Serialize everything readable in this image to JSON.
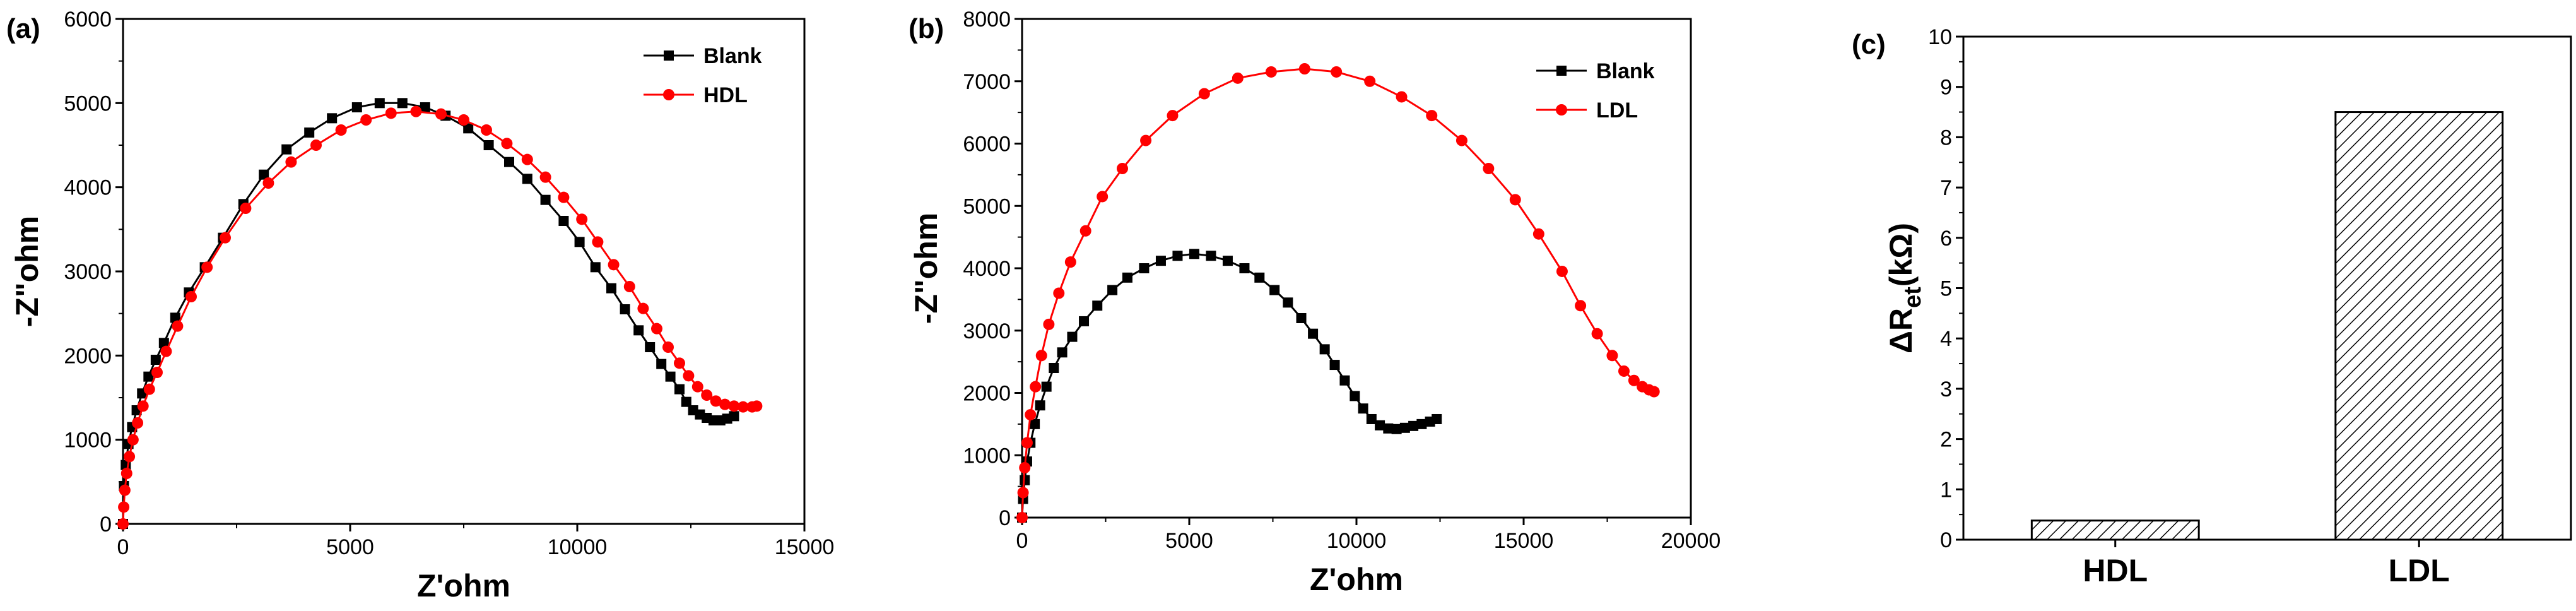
{
  "chart_data": [
    {
      "panel": "(a)",
      "type": "scatter",
      "title": "",
      "xlabel": "Z'ohm",
      "ylabel": "-Z\"ohm",
      "xlim": [
        0,
        15000
      ],
      "ylim": [
        0,
        6000
      ],
      "xticks": [
        "0",
        "5000",
        "10000",
        "15000"
      ],
      "yticks": [
        "0",
        "1000",
        "2000",
        "3000",
        "4000",
        "5000",
        "6000"
      ],
      "legend_position": "top-right",
      "series": [
        {
          "name": "Blank",
          "color": "#000000",
          "marker": "square",
          "x": [
            0,
            20,
            60,
            120,
            200,
            300,
            420,
            560,
            720,
            900,
            1150,
            1450,
            1800,
            2200,
            2650,
            3100,
            3600,
            4100,
            4600,
            5150,
            5650,
            6150,
            6650,
            7100,
            7600,
            8050,
            8500,
            8900,
            9300,
            9700,
            10050,
            10400,
            10750,
            11050,
            11350,
            11600,
            11850,
            12050,
            12250,
            12400,
            12550,
            12700,
            12850,
            13000,
            13150,
            13300,
            13450
          ],
          "y": [
            0,
            450,
            700,
            950,
            1150,
            1350,
            1550,
            1750,
            1950,
            2150,
            2450,
            2750,
            3050,
            3400,
            3800,
            4150,
            4450,
            4650,
            4820,
            4950,
            5000,
            5000,
            4950,
            4850,
            4700,
            4500,
            4300,
            4100,
            3850,
            3600,
            3350,
            3050,
            2800,
            2550,
            2300,
            2100,
            1900,
            1750,
            1600,
            1450,
            1350,
            1300,
            1260,
            1230,
            1230,
            1250,
            1280
          ]
        },
        {
          "name": "HDL",
          "color": "#ff0000",
          "marker": "circle",
          "x": [
            0,
            15,
            40,
            80,
            140,
            220,
            320,
            440,
            580,
            750,
            950,
            1200,
            1500,
            1850,
            2250,
            2700,
            3200,
            3700,
            4250,
            4800,
            5350,
            5900,
            6450,
            7000,
            7500,
            8000,
            8450,
            8900,
            9300,
            9700,
            10100,
            10450,
            10800,
            11150,
            11450,
            11750,
            12000,
            12250,
            12450,
            12650,
            12850,
            13050,
            13250,
            13450,
            13650,
            13850,
            13950
          ],
          "y": [
            0,
            200,
            400,
            600,
            800,
            1000,
            1200,
            1400,
            1600,
            1800,
            2050,
            2350,
            2700,
            3050,
            3400,
            3750,
            4050,
            4300,
            4500,
            4680,
            4800,
            4880,
            4900,
            4870,
            4800,
            4680,
            4520,
            4330,
            4120,
            3880,
            3620,
            3350,
            3080,
            2820,
            2560,
            2320,
            2100,
            1910,
            1760,
            1630,
            1530,
            1460,
            1420,
            1400,
            1390,
            1390,
            1400
          ]
        }
      ]
    },
    {
      "panel": "(b)",
      "type": "scatter",
      "title": "",
      "xlabel": "Z'ohm",
      "ylabel": "-Z\"ohm",
      "xlim": [
        0,
        20000
      ],
      "ylim": [
        0,
        8000
      ],
      "xticks": [
        "0",
        "5000",
        "10000",
        "15000",
        "20000"
      ],
      "yticks": [
        "0",
        "1000",
        "2000",
        "3000",
        "4000",
        "5000",
        "6000",
        "7000",
        "8000"
      ],
      "legend_position": "top-right",
      "series": [
        {
          "name": "Blank",
          "color": "#000000",
          "marker": "square",
          "x": [
            0,
            30,
            80,
            150,
            250,
            380,
            540,
            730,
            950,
            1200,
            1500,
            1850,
            2250,
            2700,
            3150,
            3650,
            4150,
            4650,
            5150,
            5650,
            6150,
            6650,
            7100,
            7550,
            7950,
            8350,
            8700,
            9050,
            9350,
            9650,
            9950,
            10200,
            10450,
            10700,
            10950,
            11200,
            11450,
            11700,
            11950,
            12200,
            12400
          ],
          "y": [
            0,
            300,
            600,
            900,
            1200,
            1500,
            1800,
            2100,
            2400,
            2650,
            2900,
            3150,
            3400,
            3650,
            3850,
            4000,
            4120,
            4200,
            4230,
            4200,
            4120,
            4000,
            3850,
            3650,
            3450,
            3200,
            2950,
            2700,
            2450,
            2200,
            1950,
            1750,
            1580,
            1480,
            1430,
            1420,
            1440,
            1470,
            1500,
            1540,
            1580
          ]
        },
        {
          "name": "LDL",
          "color": "#ff0000",
          "marker": "circle",
          "x": [
            0,
            30,
            80,
            150,
            250,
            400,
            580,
            800,
            1100,
            1450,
            1900,
            2400,
            3000,
            3700,
            4500,
            5450,
            6450,
            7450,
            8450,
            9400,
            10400,
            11350,
            12250,
            13150,
            13950,
            14750,
            15450,
            16150,
            16700,
            17200,
            17650,
            18000,
            18300,
            18550,
            18750,
            18900
          ],
          "y": [
            0,
            400,
            800,
            1200,
            1650,
            2100,
            2600,
            3100,
            3600,
            4100,
            4600,
            5150,
            5600,
            6050,
            6450,
            6800,
            7050,
            7150,
            7200,
            7150,
            7000,
            6750,
            6450,
            6050,
            5600,
            5100,
            4550,
            3950,
            3400,
            2950,
            2600,
            2350,
            2200,
            2100,
            2050,
            2020
          ]
        }
      ]
    },
    {
      "panel": "(c)",
      "type": "bar",
      "title": "",
      "xlabel": "",
      "ylabel": "ΔR_et(kΩ)",
      "ylabel_main": "ΔR",
      "ylabel_sub": "et",
      "ylabel_unit": "(kΩ)",
      "ylim": [
        0,
        10
      ],
      "yticks": [
        "0",
        "1",
        "2",
        "3",
        "4",
        "5",
        "6",
        "7",
        "8",
        "9",
        "10"
      ],
      "categories": [
        "HDL",
        "LDL"
      ],
      "values": [
        0.38,
        8.5
      ],
      "fill": "hatched"
    }
  ]
}
